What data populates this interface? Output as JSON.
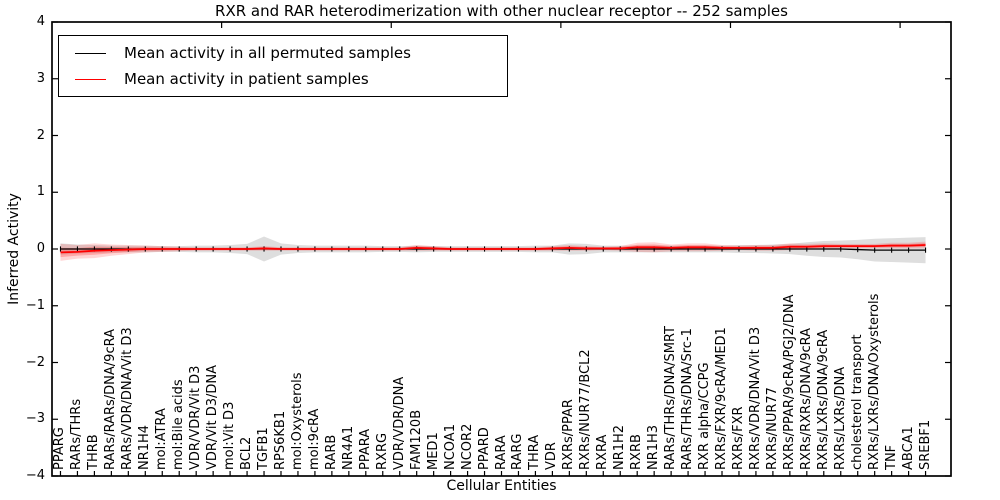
{
  "chart_data": {
    "type": "line",
    "title": "RXR and RAR heterodimerization with other nuclear receptor -- 252 samples",
    "xlabel": "Cellular Entities",
    "ylabel": "Inferred Activity",
    "ylim": [
      -4,
      4
    ],
    "yticks": [
      4,
      3,
      2,
      1,
      0,
      -1,
      -2,
      -3,
      -4
    ],
    "yticklabels": [
      "4",
      "3",
      "2",
      "1",
      "0",
      "−1",
      "−2",
      "−3",
      "−4"
    ],
    "x_axis_range": [
      0,
      53
    ],
    "xticks_top_values": [
      10,
      20,
      30,
      40,
      50
    ],
    "grid": false,
    "legend_position": "upper left",
    "categories": [
      "PPARG",
      "RARs/THRs",
      "THRB",
      "RARs/RARs/DNA/9cRA",
      "RARs/VDR/DNA/Vit D3",
      "NR1H4",
      "mol:ATRA",
      "mol:Bile acids",
      "VDR/VDR/Vit D3",
      "VDR/Vit D3/DNA",
      "mol:Vit D3",
      "BCL2",
      "TGFB1",
      "RPS6KB1",
      "mol:Oxysterols",
      "mol:9cRA",
      "RARB",
      "NR4A1",
      "PPARA",
      "RXRG",
      "VDR/VDR/DNA",
      "FAM120B",
      "MED1",
      "NCOA1",
      "NCOR2",
      "PPARD",
      "RARA",
      "RARG",
      "THRA",
      "VDR",
      "RXRs/PPAR",
      "RXRs/NUR77/BCL2",
      "RXRA",
      "NR1H2",
      "RXRB",
      "NR1H3",
      "RARs/THRs/DNA/SMRT",
      "RARs/THRs/DNA/Src-1",
      "RXR alpha/CCPG",
      "RXRs/FXR/9cRA/MED1",
      "RXRs/FXR",
      "RXRs/VDR/DNA/Vit D3",
      "RXRs/NUR77",
      "RXRs/PPAR/9cRA/PGJ2/DNA",
      "RXRs/RXRs/DNA/9cRA",
      "RXRs/LXRs/DNA/9cRA",
      "RXRs/LXRs/DNA",
      "cholesterol transport",
      "RXRs/LXRs/DNA/Oxysterols",
      "TNF",
      "ABCA1",
      "SREBF1"
    ],
    "series": [
      {
        "name": "Mean activity in all permuted samples",
        "color": "#000000",
        "band_color": "#000000",
        "values": [
          0,
          0,
          0,
          0,
          0,
          0,
          0,
          0,
          0,
          0,
          0,
          0,
          0,
          0,
          0,
          0,
          0,
          0,
          0,
          0,
          0,
          0,
          0,
          0,
          0,
          0,
          0,
          0,
          0,
          0,
          0,
          0,
          0,
          0,
          0,
          0,
          0,
          0,
          0,
          0,
          0,
          0,
          0,
          0,
          0,
          0,
          0,
          -0.01,
          -0.02,
          -0.02,
          -0.02,
          -0.02
        ],
        "band_halfwidth": [
          0.1,
          0.08,
          0.07,
          0.06,
          0.06,
          0.06,
          0.05,
          0.05,
          0.06,
          0.06,
          0.07,
          0.09,
          0.22,
          0.1,
          0.07,
          0.06,
          0.06,
          0.06,
          0.06,
          0.05,
          0.05,
          0.06,
          0.05,
          0.05,
          0.05,
          0.05,
          0.05,
          0.05,
          0.06,
          0.06,
          0.1,
          0.09,
          0.06,
          0.06,
          0.06,
          0.06,
          0.06,
          0.06,
          0.06,
          0.06,
          0.07,
          0.07,
          0.08,
          0.09,
          0.12,
          0.14,
          0.15,
          0.17,
          0.2,
          0.21,
          0.22,
          0.23
        ]
      },
      {
        "name": "Mean activity in patient samples",
        "color": "#ff0000",
        "band_color": "#ff0000",
        "values": [
          -0.06,
          -0.05,
          -0.03,
          -0.02,
          -0.01,
          0,
          0,
          0,
          0,
          0,
          0,
          0,
          0.01,
          0,
          0,
          0,
          0,
          0,
          0,
          0,
          0,
          0.02,
          0.01,
          0,
          0,
          0,
          0,
          0,
          0,
          0.01,
          0.02,
          0.01,
          0.01,
          0.01,
          0.03,
          0.03,
          0.02,
          0.03,
          0.03,
          0.02,
          0.02,
          0.02,
          0.02,
          0.04,
          0.04,
          0.05,
          0.05,
          0.05,
          0.05,
          0.06,
          0.06,
          0.07
        ],
        "band_halfwidth": [
          0.15,
          0.12,
          0.13,
          0.1,
          0.08,
          0.06,
          0.05,
          0.04,
          0.03,
          0.03,
          0.03,
          0.03,
          0.04,
          0.03,
          0.03,
          0.03,
          0.03,
          0.03,
          0.03,
          0.03,
          0.03,
          0.05,
          0.04,
          0.03,
          0.03,
          0.03,
          0.03,
          0.03,
          0.03,
          0.04,
          0.05,
          0.04,
          0.03,
          0.04,
          0.08,
          0.09,
          0.06,
          0.07,
          0.07,
          0.05,
          0.04,
          0.05,
          0.05,
          0.06,
          0.05,
          0.05,
          0.04,
          0.04,
          0.04,
          0.05,
          0.05,
          0.06
        ]
      }
    ]
  }
}
